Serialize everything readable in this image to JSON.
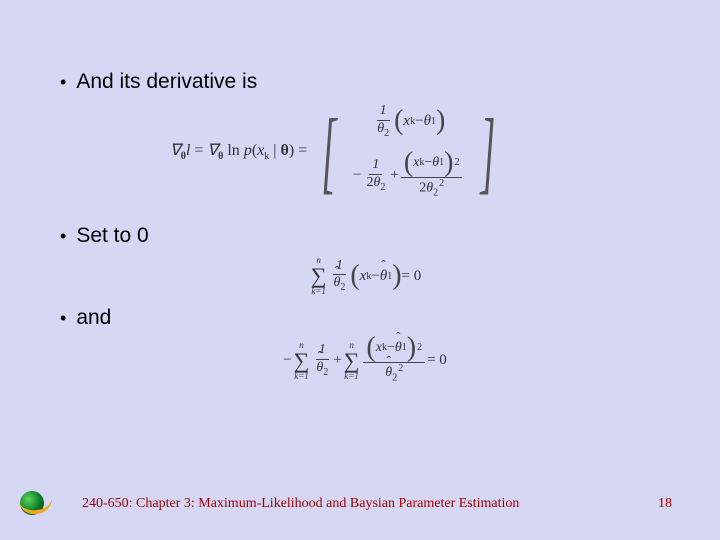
{
  "bullets": {
    "b1": "And its derivative is",
    "b2": "Set to 0",
    "b3": "and"
  },
  "eq1": {
    "prefix_grad1": "∇",
    "prefix_sub1": "θ",
    "prefix_l": "l",
    "eq": " = ",
    "prefix_grad2": "∇",
    "prefix_sub2": "θ",
    "ln": " ln ",
    "p": "p",
    "lp": "(",
    "xk_x": "x",
    "xk_k": "k",
    "bar": " | ",
    "theta_b": "θ",
    "rp": ")",
    "eq2": " = ",
    "row1": {
      "num": "1",
      "den_th": "θ",
      "den_sub": "2",
      "xk_x": "x",
      "xk_k": "k",
      "minus": " − ",
      "th": "θ",
      "th_sub": "1"
    },
    "row2": {
      "minus": "−",
      "num": "1",
      "den_2": "2",
      "den_th": "θ",
      "den_sub": "2",
      "plus": " + ",
      "xk_x": "x",
      "xk_k": "k",
      "minus2": " − ",
      "th": "θ",
      "th_sub": "1",
      "sq": "2",
      "den2_2": "2",
      "den2_th": "θ",
      "den2_sub": "2",
      "den2_sq": "2"
    }
  },
  "eq2": {
    "sum_top": "n",
    "sum_bot": "k=1",
    "num": "1",
    "den_th": "θ",
    "den_sub": "2",
    "xk_x": "x",
    "xk_k": "k",
    "minus": " − ",
    "th": "θ",
    "th_sub": "1",
    "eq": " = 0"
  },
  "eq3": {
    "lead_minus": "−",
    "sum1_top": "n",
    "sum1_bot": "k=1",
    "num1": "1",
    "den1_th": "θ",
    "den1_sub": "2",
    "plus": " + ",
    "sum2_top": "n",
    "sum2_bot": "k=1",
    "xk_x": "x",
    "xk_k": "k",
    "minus": " − ",
    "th": "θ",
    "th_sub": "1",
    "sq": "2",
    "den2_th": "θ",
    "den2_sub": "2",
    "den2_sq": "2",
    "eq": " = 0"
  },
  "footer": {
    "text": "240-650: Chapter 3: Maximum-Likelihood and Baysian Parameter Estimation",
    "page": "18"
  },
  "colors": {
    "bg": "#d6d6f5",
    "footer_text": "#a00000"
  }
}
